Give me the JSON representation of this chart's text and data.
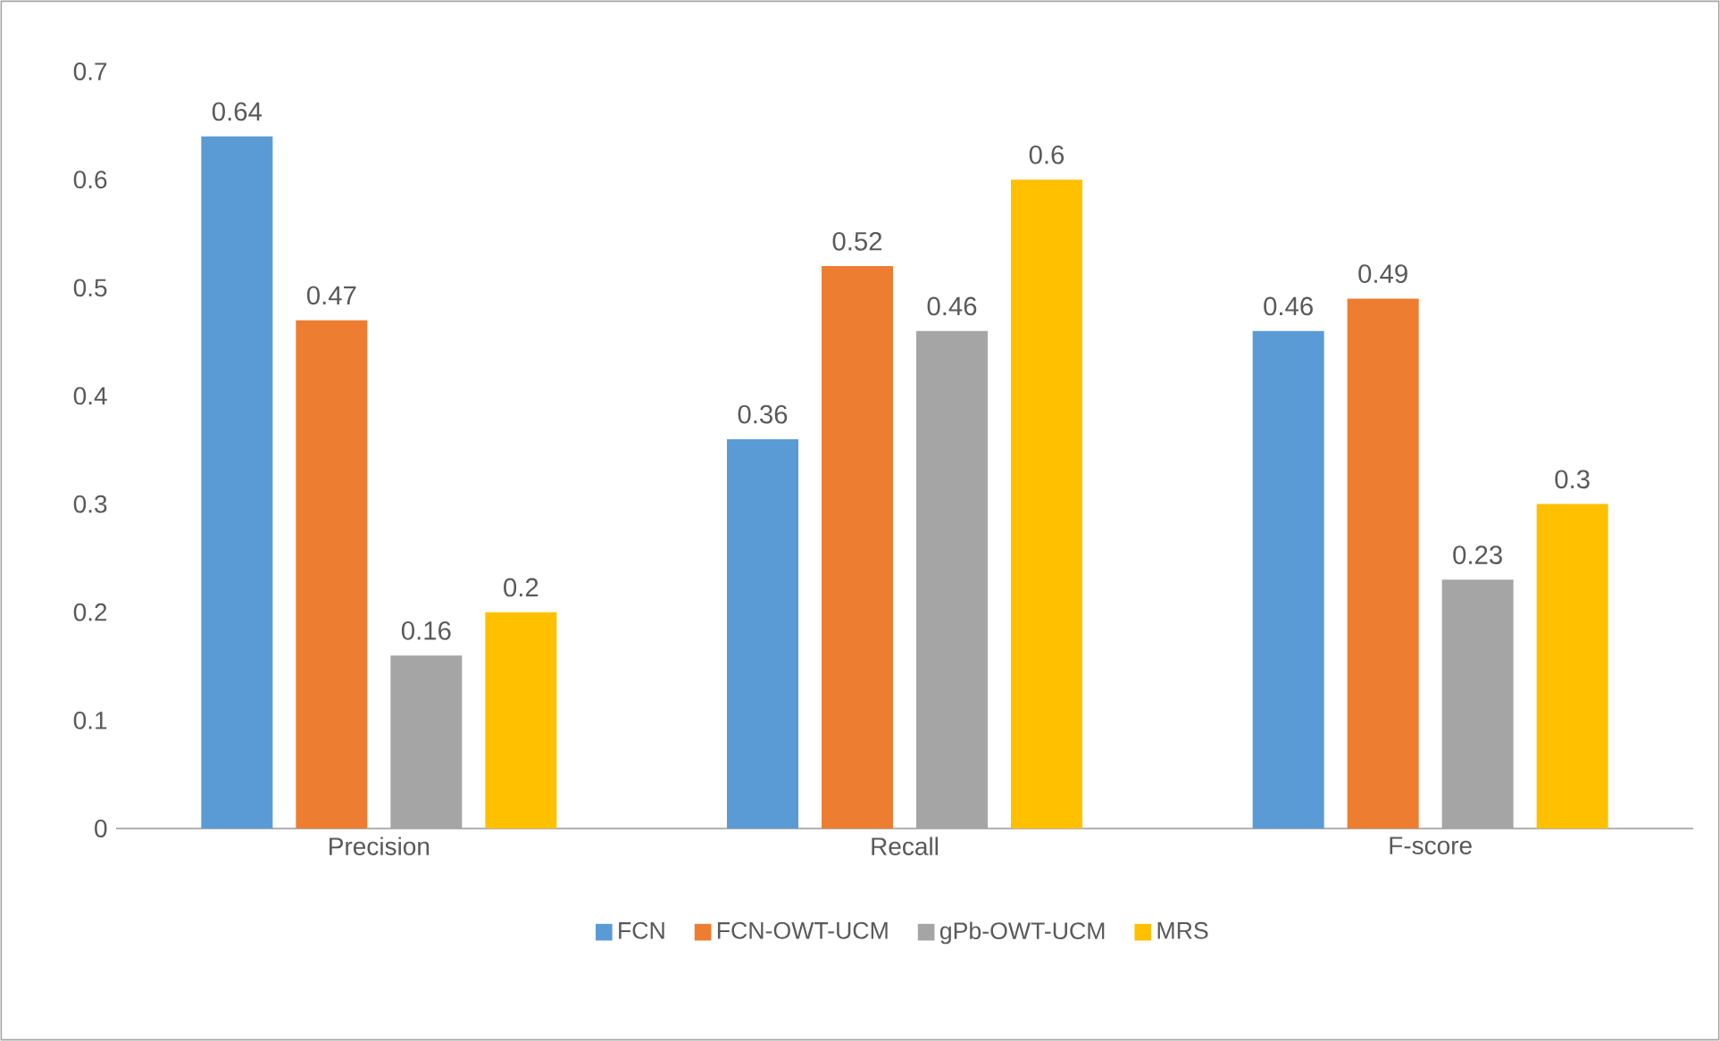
{
  "chart_data": {
    "type": "bar",
    "categories": [
      "Precision",
      "Recall",
      "F-score"
    ],
    "series": [
      {
        "name": "FCN",
        "color": "#5b9bd5",
        "values": [
          0.64,
          0.36,
          0.46
        ]
      },
      {
        "name": "FCN-OWT-UCM",
        "color": "#ed7d31",
        "values": [
          0.47,
          0.52,
          0.49
        ]
      },
      {
        "name": "gPb-OWT-UCM",
        "color": "#a5a5a5",
        "values": [
          0.16,
          0.46,
          0.23
        ]
      },
      {
        "name": "MRS",
        "color": "#ffc000",
        "values": [
          0.2,
          0.6,
          0.3
        ]
      }
    ],
    "ylim": [
      0,
      0.7
    ],
    "yticks": [
      0,
      0.1,
      0.2,
      0.3,
      0.4,
      0.5,
      0.6,
      0.7
    ],
    "data_labels": true,
    "legend": "bottom",
    "grid": false
  }
}
